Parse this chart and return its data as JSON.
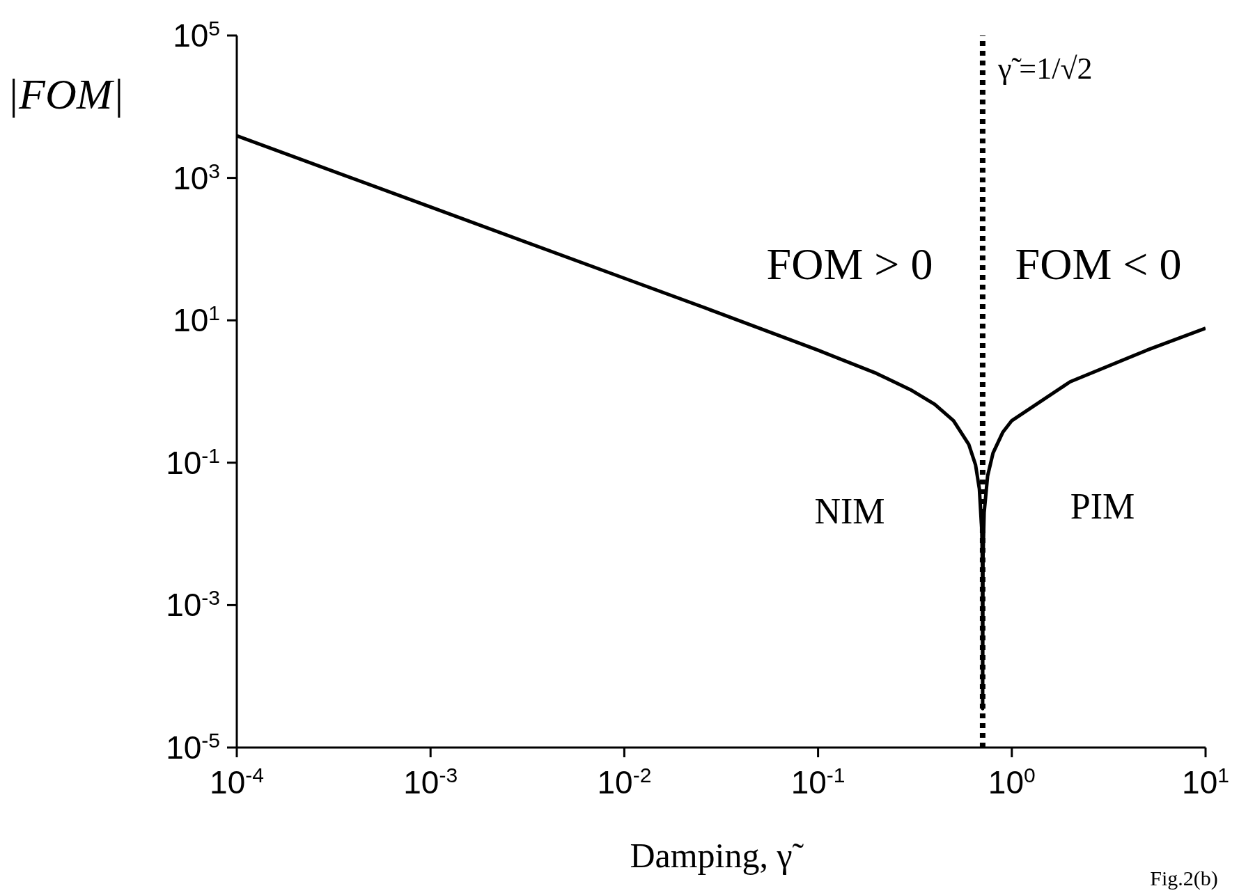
{
  "chart_data": {
    "type": "line",
    "xlabel": "Damping, γ̃",
    "ylabel": "|FOM|",
    "log": "xy",
    "marker": "none",
    "line_style": "solid",
    "xlim": [
      0.0001,
      10
    ],
    "ylim": [
      1e-05,
      100000
    ],
    "xticks": [
      {
        "value": 0.0001,
        "label": "10$^{-4}$"
      },
      {
        "value": 0.001,
        "label": "10$^{-3}$"
      },
      {
        "value": 0.01,
        "label": "10$^{-2}$"
      },
      {
        "value": 0.1,
        "label": "10$^{-1}$"
      },
      {
        "value": 1,
        "label": "10$^{0}$"
      },
      {
        "value": 10,
        "label": "10$^{1}$"
      }
    ],
    "yticks": [
      {
        "value": 1e-05,
        "label": "10$^{-5}$"
      },
      {
        "value": 0.001,
        "label": "10$^{-3}$"
      },
      {
        "value": 0.1,
        "label": "10$^{-1}$"
      },
      {
        "value": 10,
        "label": "10$^{1}$"
      },
      {
        "value": 1000,
        "label": "10$^{3}$"
      },
      {
        "value": 100000,
        "label": "10$^{5}$"
      }
    ],
    "series": [
      {
        "color": "#000000",
        "x": [
          0.0001,
          0.001,
          0.01,
          0.03,
          0.1,
          0.2,
          0.3,
          0.4,
          0.5,
          0.6,
          0.65,
          0.68,
          0.7,
          0.705,
          0.7071,
          0.71,
          0.72,
          0.75,
          0.8,
          0.9,
          1,
          2,
          5,
          10
        ],
        "values": [
          3900,
          390,
          39,
          13,
          3.8,
          1.8,
          1.06,
          0.66,
          0.39,
          0.18,
          0.093,
          0.043,
          0.011,
          0.0035,
          3.5e-05,
          0.0045,
          0.02,
          0.065,
          0.137,
          0.27,
          0.39,
          1.37,
          3.82,
          7.76
        ]
      }
    ],
    "ref_lines": [
      {
        "axis": "x",
        "value": 0.7071,
        "label": "γ̃ =1/√2",
        "line_style": "dotted",
        "color": "#000000"
      }
    ],
    "annotations": [
      "FOM > 0",
      "FOM < 0",
      "NIM",
      "PIM",
      "Fig.2(b)"
    ]
  }
}
